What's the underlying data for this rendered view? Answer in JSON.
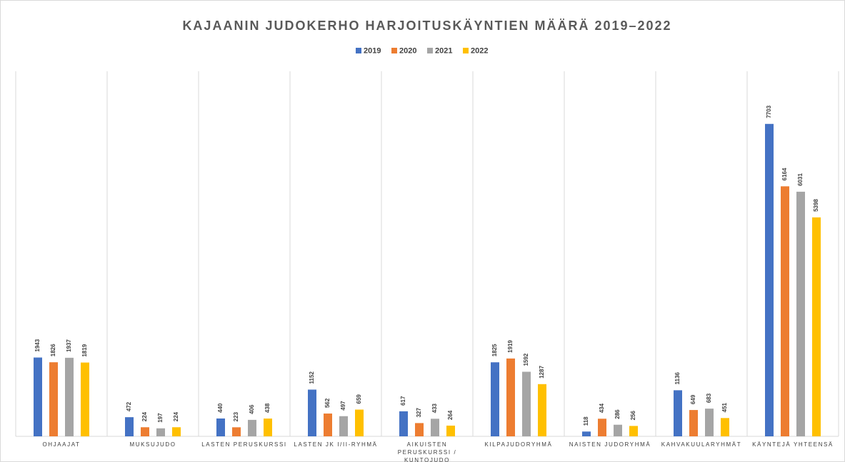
{
  "chart_data": {
    "type": "bar",
    "title": "KAJAANIN JUDOKERHO HARJOITUSKÄYNTIEN MÄÄRÄ 2019–2022",
    "categories": [
      "OHJAAJAT",
      "MUKSUJUDO",
      "LASTEN PERUSKURSSI",
      "LASTEN JK I/II-RYHMÄ",
      "AIKUISTEN PERUSKURSSI / KUNTOJUDO",
      "KILPAJUDORYHMÄ",
      "NAISTEN JUDORYHMÄ",
      "KAHVAKUULARYHMÄT",
      "KÄYNTEJÄ YHTEENSÄ"
    ],
    "series": [
      {
        "name": "2019",
        "color": "#4472c4",
        "values": [
          1943,
          472,
          440,
          1152,
          617,
          1825,
          118,
          1136,
          7703
        ]
      },
      {
        "name": "2020",
        "color": "#ed7d31",
        "values": [
          1826,
          224,
          223,
          562,
          327,
          1919,
          434,
          649,
          6164
        ]
      },
      {
        "name": "2021",
        "color": "#a5a5a5",
        "values": [
          1937,
          197,
          406,
          497,
          433,
          1592,
          286,
          683,
          6031
        ]
      },
      {
        "name": "2022",
        "color": "#ffc000",
        "values": [
          1819,
          224,
          438,
          659,
          264,
          1287,
          256,
          451,
          5398
        ]
      }
    ],
    "ylim": [
      0,
      9000
    ],
    "legend": "top"
  }
}
